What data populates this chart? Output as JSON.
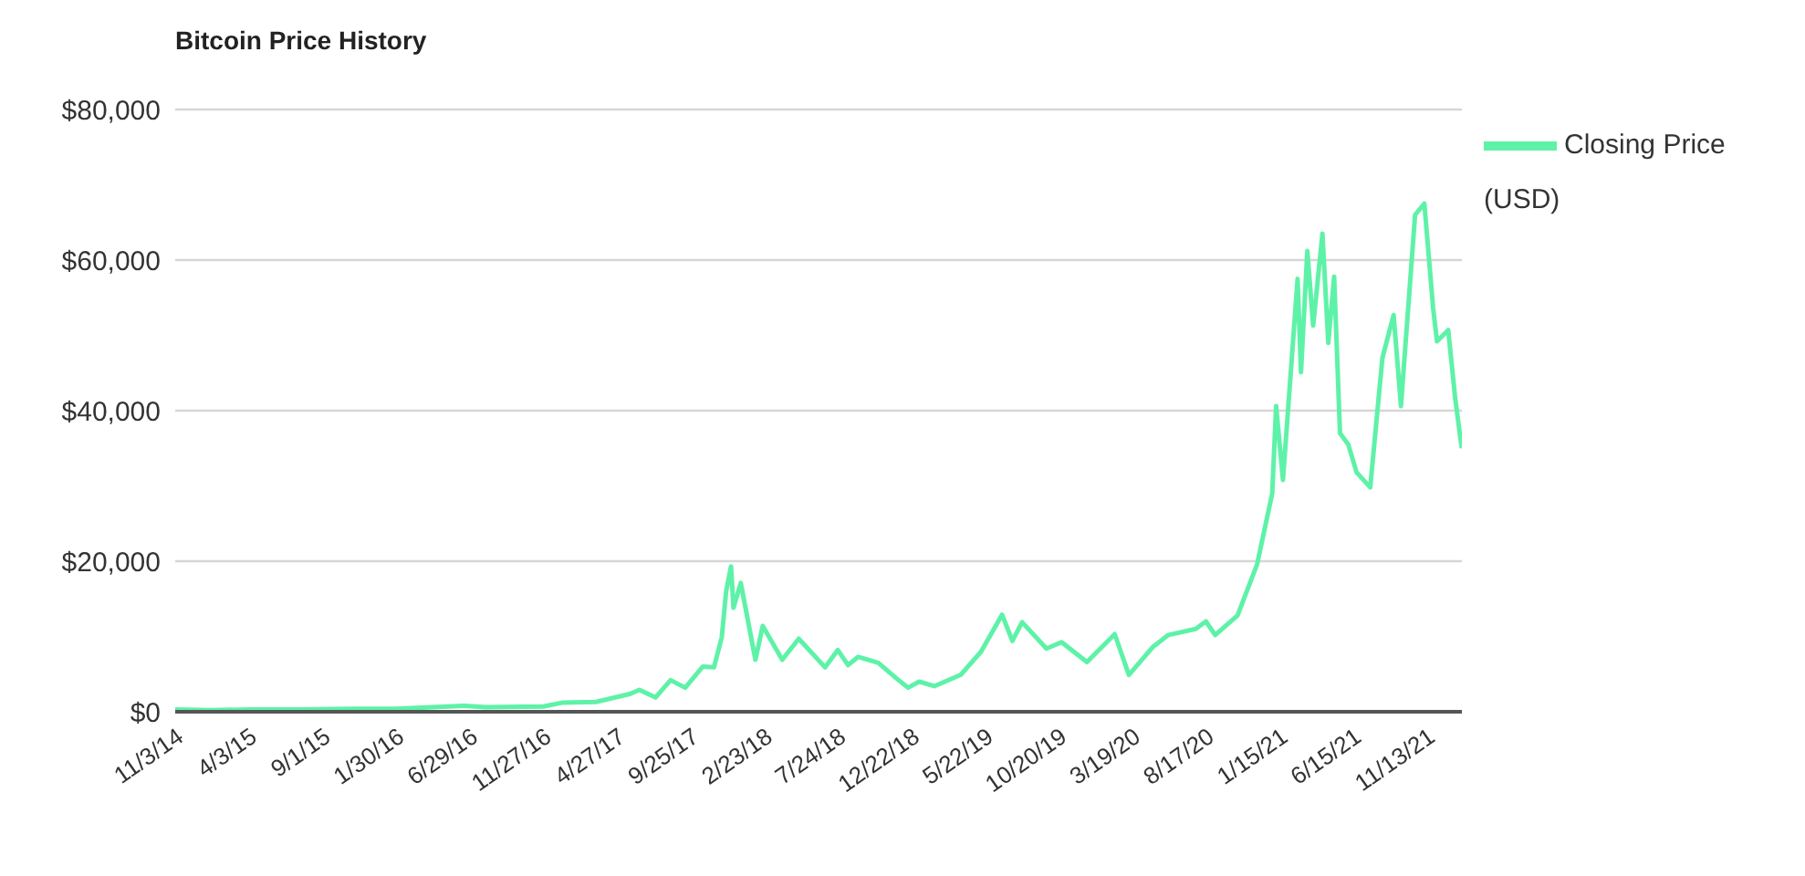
{
  "chart_data": {
    "type": "line",
    "title": "Bitcoin Price History",
    "x": [
      "2014-11-03",
      "2015-01-14",
      "2015-04-03",
      "2015-07-15",
      "2015-11-04",
      "2016-01-30",
      "2016-06-17",
      "2016-08-01",
      "2016-11-27",
      "2017-01-04",
      "2017-03-15",
      "2017-05-25",
      "2017-06-12",
      "2017-07-15",
      "2017-08-15",
      "2017-09-14",
      "2017-10-20",
      "2017-11-12",
      "2017-11-28",
      "2017-12-07",
      "2017-12-17",
      "2017-12-22",
      "2018-01-06",
      "2018-02-05",
      "2018-02-20",
      "2018-04-01",
      "2018-05-05",
      "2018-06-28",
      "2018-07-24",
      "2018-08-14",
      "2018-09-04",
      "2018-10-15",
      "2018-11-20",
      "2018-12-15",
      "2019-01-07",
      "2019-02-07",
      "2019-04-02",
      "2019-05-14",
      "2019-06-26",
      "2019-07-17",
      "2019-08-06",
      "2019-09-25",
      "2019-10-26",
      "2019-12-17",
      "2020-02-12",
      "2020-03-12",
      "2020-04-30",
      "2020-06-01",
      "2020-07-27",
      "2020-08-17",
      "2020-09-05",
      "2020-10-21",
      "2020-11-30",
      "2020-12-31",
      "2021-01-08",
      "2021-01-22",
      "2021-02-21",
      "2021-02-28",
      "2021-03-13",
      "2021-03-25",
      "2021-04-13",
      "2021-04-25",
      "2021-05-07",
      "2021-05-19",
      "2021-06-05",
      "2021-06-22",
      "2021-07-20",
      "2021-08-14",
      "2021-09-06",
      "2021-09-21",
      "2021-10-20",
      "2021-11-08",
      "2021-11-26",
      "2021-12-04",
      "2021-12-27",
      "2022-01-10",
      "2022-01-21",
      "2022-01-24"
    ],
    "series": [
      {
        "name": "Closing Price (USD)",
        "color": "#5ef2a8",
        "values": [
          300,
          200,
          300,
          300,
          400,
          400,
          800,
          600,
          700,
          1200,
          1300,
          2400,
          2900,
          1900,
          4200,
          3200,
          6000,
          5900,
          9900,
          16000,
          19300,
          13800,
          17100,
          6900,
          11400,
          6900,
          9700,
          5900,
          8200,
          6200,
          7300,
          6500,
          4500,
          3200,
          4000,
          3400,
          4900,
          8000,
          12900,
          9400,
          11900,
          8400,
          9250,
          6600,
          10300,
          4900,
          8600,
          10200,
          11000,
          12000,
          10200,
          12800,
          19600,
          29000,
          40600,
          30800,
          57500,
          45100,
          61200,
          51300,
          63500,
          49000,
          57800,
          37000,
          35500,
          31800,
          29800,
          47000,
          52700,
          40600,
          66000,
          67500,
          53600,
          49200,
          50700,
          41800,
          36300,
          35000
        ]
      }
    ],
    "xlim": [
      "2014-11-03",
      "2022-01-24"
    ],
    "xticks": [
      {
        "value": "2014-11-03",
        "label": "11/3/14"
      },
      {
        "value": "2015-04-03",
        "label": "4/3/15"
      },
      {
        "value": "2015-09-01",
        "label": "9/1/15"
      },
      {
        "value": "2016-01-30",
        "label": "1/30/16"
      },
      {
        "value": "2016-06-29",
        "label": "6/29/16"
      },
      {
        "value": "2016-11-27",
        "label": "11/27/16"
      },
      {
        "value": "2017-04-27",
        "label": "4/27/17"
      },
      {
        "value": "2017-09-25",
        "label": "9/25/17"
      },
      {
        "value": "2018-02-23",
        "label": "2/23/18"
      },
      {
        "value": "2018-07-24",
        "label": "7/24/18"
      },
      {
        "value": "2018-12-22",
        "label": "12/22/18"
      },
      {
        "value": "2019-05-22",
        "label": "5/22/19"
      },
      {
        "value": "2019-10-20",
        "label": "10/20/19"
      },
      {
        "value": "2020-03-19",
        "label": "3/19/20"
      },
      {
        "value": "2020-08-17",
        "label": "8/17/20"
      },
      {
        "value": "2021-01-15",
        "label": "1/15/21"
      },
      {
        "value": "2021-06-15",
        "label": "6/15/21"
      },
      {
        "value": "2021-11-13",
        "label": "11/13/21"
      }
    ],
    "ylim": [
      0,
      80000
    ],
    "yticks": [
      {
        "value": 0,
        "label": "$0"
      },
      {
        "value": 20000,
        "label": "$20,000"
      },
      {
        "value": 40000,
        "label": "$40,000"
      },
      {
        "value": 60000,
        "label": "$60,000"
      },
      {
        "value": 80000,
        "label": "$80,000"
      }
    ],
    "grid": "y",
    "legend": "top right",
    "marker": "none",
    "line_style": "solid"
  }
}
